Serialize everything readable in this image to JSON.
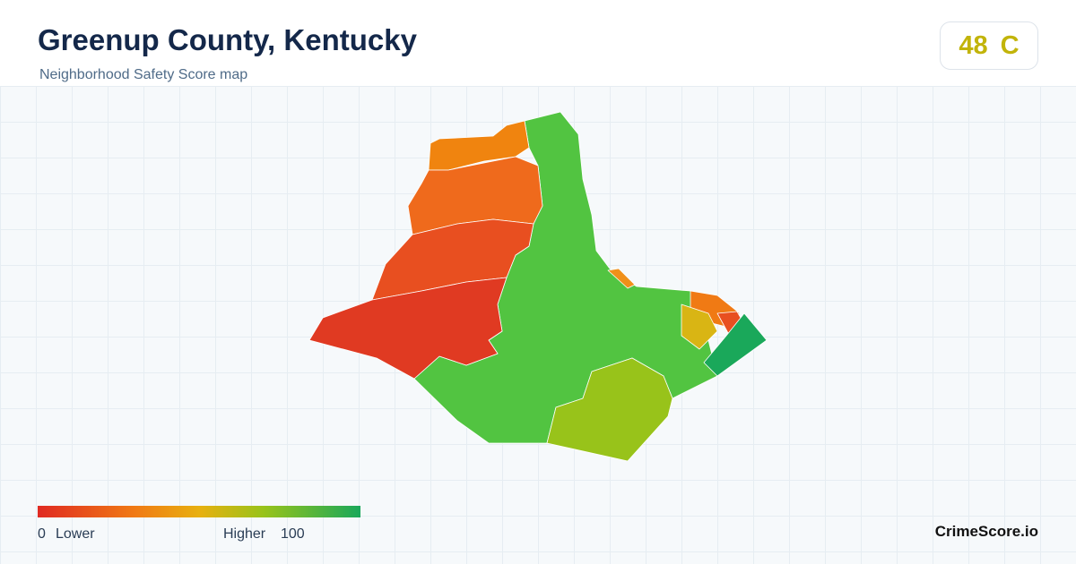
{
  "header": {
    "title": "Greenup County, Kentucky",
    "subtitle": "Neighborhood Safety Score map"
  },
  "score": {
    "value": 48,
    "grade": "C"
  },
  "legend": {
    "min": 0,
    "low_label": "Lower",
    "high_label": "Higher",
    "max": 100
  },
  "footer": {
    "brand": "CrimeScore.io"
  }
}
